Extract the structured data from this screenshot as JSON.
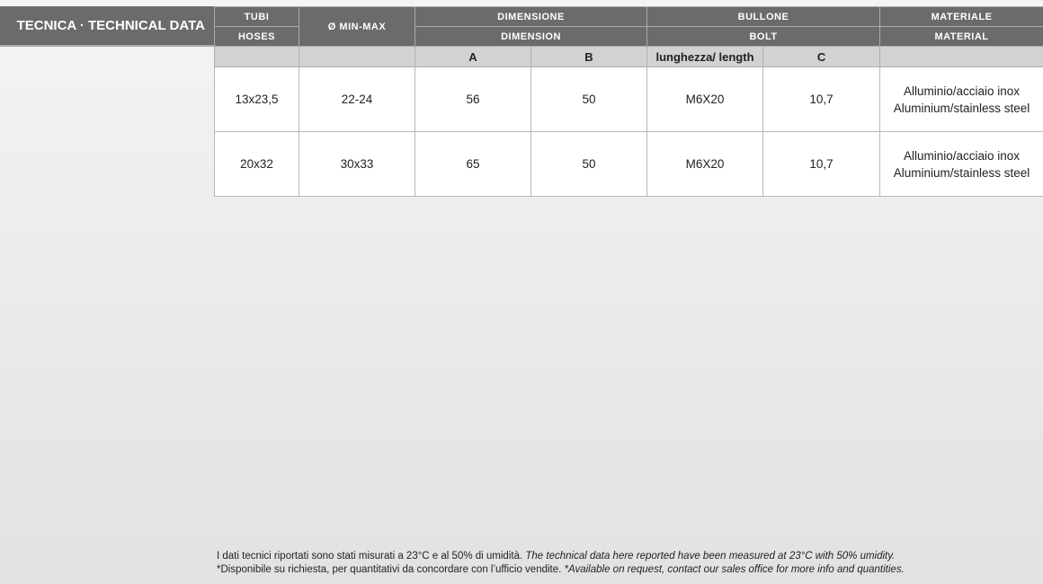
{
  "title": "TECNICA · TECHNICAL DATA",
  "headers": {
    "hoses_it": "TUBI",
    "hoses_en": "HOSES",
    "minmax": "Ø MIN-MAX",
    "dimension_it": "DIMENSIONE",
    "dimension_en": "DIMENSION",
    "bolt_it": "BULLONE",
    "bolt_en": "BOLT",
    "material_it": "MATERIALE",
    "material_en": "MATERIAL",
    "a": "A",
    "b": "B",
    "length": "lunghezza/ length",
    "c": "C"
  },
  "rows": [
    {
      "hoses": "13x23,5",
      "minmax": "22-24",
      "a": "56",
      "b": "50",
      "length": "M6X20",
      "c": "10,7",
      "material_it": "Alluminio/acciaio inox",
      "material_en": "Aluminium/stainless steel"
    },
    {
      "hoses": "20x32",
      "minmax": "30x33",
      "a": "65",
      "b": "50",
      "length": "M6X20",
      "c": "10,7",
      "material_it": "Alluminio/acciaio inox",
      "material_en": "Aluminium/stainless steel"
    }
  ],
  "footer": {
    "line1_it": "I dati tecnici riportati sono stati misurati a 23°C e al 50% di umidità.",
    "line1_en": "The technical data here reported have been measured at 23°C with 50% umidity.",
    "line2_it": "*Disponibile su richiesta, per quantitativi da concordare con l’ufficio vendite.",
    "line2_en": "*Available on request, contact our sales office for more info and quantities."
  }
}
